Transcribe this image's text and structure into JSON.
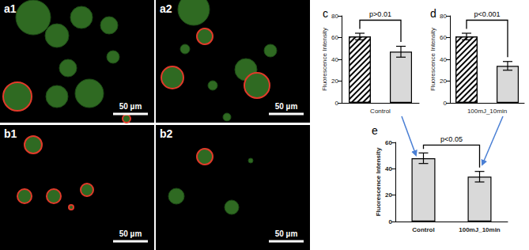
{
  "images": [
    {
      "label": "a1",
      "scale_bar": "50 µm"
    },
    {
      "label": "a2",
      "scale_bar": "50 µm"
    },
    {
      "label": "b1",
      "scale_bar": "50 µm"
    },
    {
      "label": "b2",
      "scale_bar": "50 µm"
    }
  ],
  "chart_data": [
    {
      "type": "bar",
      "panel_label": "c",
      "ylabel": "Fluorescence Intensity",
      "categories": [
        "Control"
      ],
      "series": [
        {
          "color": "#ffffff",
          "marker": "hatch",
          "values": [
            61
          ],
          "errors": [
            3
          ]
        },
        {
          "color": "#d9d9d9",
          "values": [
            47
          ],
          "errors": [
            5
          ]
        }
      ],
      "ylim": [
        0,
        80
      ],
      "yticks": [
        0,
        20,
        40,
        60,
        80
      ],
      "grid": false,
      "annotation": "p>0.01"
    },
    {
      "type": "bar",
      "panel_label": "d",
      "ylabel": "Fluorescence Intensity",
      "categories": [
        "100mJ_10min"
      ],
      "series": [
        {
          "color": "#ffffff",
          "marker": "hatch",
          "values": [
            61
          ],
          "errors": [
            3
          ]
        },
        {
          "color": "#d9d9d9",
          "values": [
            34
          ],
          "errors": [
            4
          ]
        }
      ],
      "ylim": [
        0,
        80
      ],
      "yticks": [
        0,
        20,
        40,
        60,
        80
      ],
      "grid": false,
      "annotation": "p<0.001"
    },
    {
      "type": "bar",
      "panel_label": "e",
      "ylabel": "Fluorescence Intensity",
      "categories": [
        "Control",
        "100mJ_10min"
      ],
      "series": [
        {
          "color": "#d9d9d9",
          "values": [
            48,
            34
          ],
          "errors": [
            4,
            4
          ]
        }
      ],
      "ylim": [
        0,
        60
      ],
      "yticks": [
        0,
        20,
        40,
        60
      ],
      "grid": false,
      "annotation": "p<0.05"
    }
  ]
}
